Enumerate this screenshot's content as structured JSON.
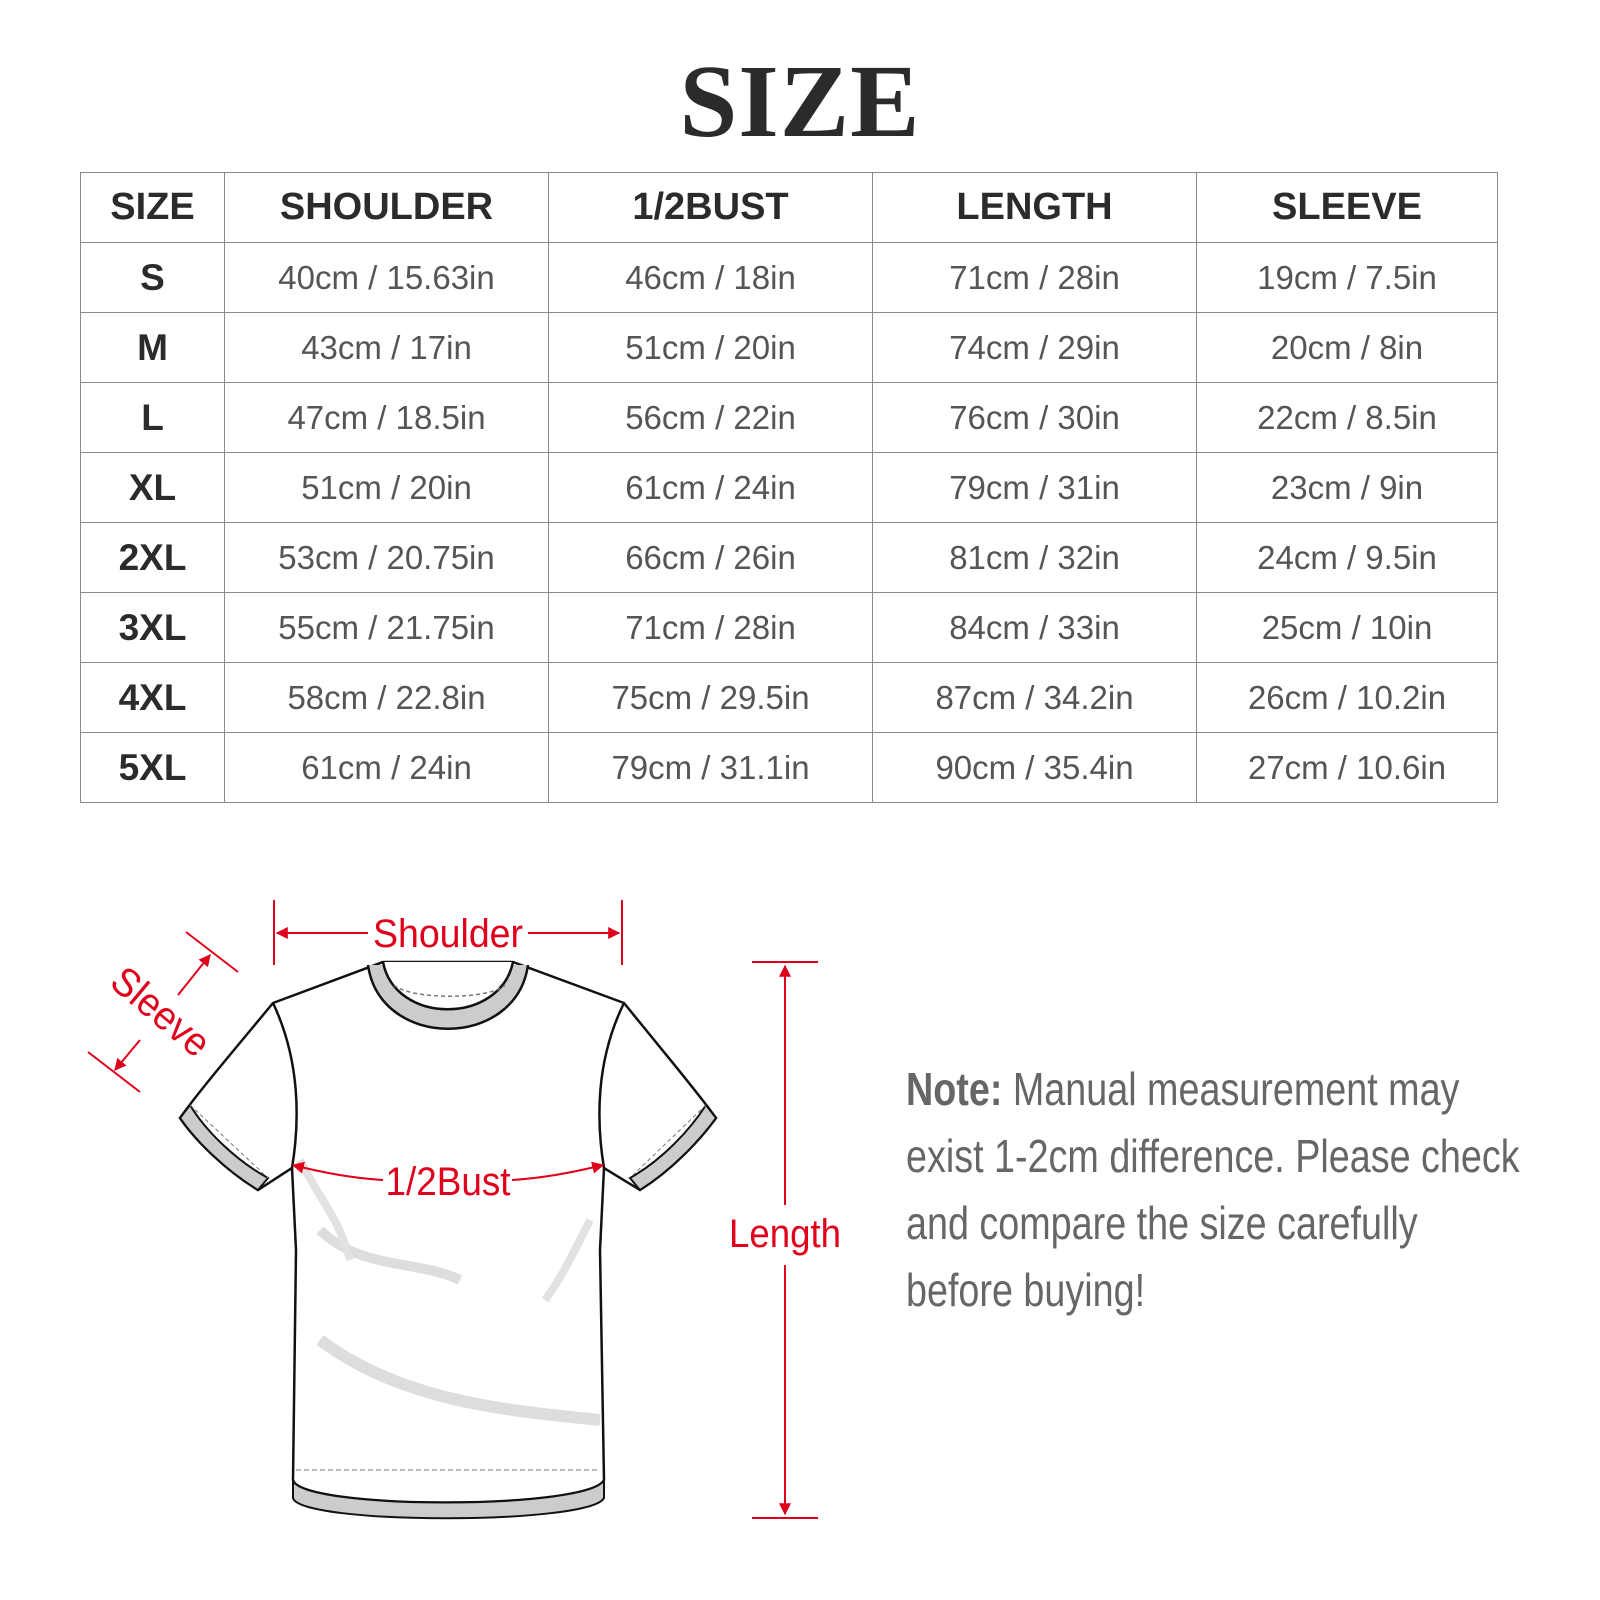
{
  "title": "SIZE",
  "table": {
    "headers": [
      "SIZE",
      "SHOULDER",
      "1/2BUST",
      "LENGTH",
      "SLEEVE"
    ],
    "rows": [
      [
        "S",
        "40cm / 15.63in",
        "46cm / 18in",
        "71cm / 28in",
        "19cm / 7.5in"
      ],
      [
        "M",
        "43cm / 17in",
        "51cm / 20in",
        "74cm / 29in",
        "20cm / 8in"
      ],
      [
        "L",
        "47cm / 18.5in",
        "56cm / 22in",
        "76cm / 30in",
        "22cm / 8.5in"
      ],
      [
        "XL",
        "51cm / 20in",
        "61cm / 24in",
        "79cm / 31in",
        "23cm / 9in"
      ],
      [
        "2XL",
        "53cm / 20.75in",
        "66cm / 26in",
        "81cm / 32in",
        "24cm / 9.5in"
      ],
      [
        "3XL",
        "55cm / 21.75in",
        "71cm / 28in",
        "84cm / 33in",
        "25cm / 10in"
      ],
      [
        "4XL",
        "58cm / 22.8in",
        "75cm / 29.5in",
        "87cm / 34.2in",
        "26cm / 10.2in"
      ],
      [
        "5XL",
        "61cm / 24in",
        "79cm / 31.1in",
        "90cm / 35.4in",
        "27cm / 10.6in"
      ]
    ]
  },
  "diagram": {
    "shoulder_label": "Shoulder",
    "sleeve_label": "Sleeve",
    "bust_label": "1/2Bust",
    "length_label": "Length",
    "accent_color": "#e0001b"
  },
  "note": {
    "label": "Note:",
    "text": " Manual measurement may exist 1-2cm difference. Please check and compare the size carefully before buying!"
  }
}
